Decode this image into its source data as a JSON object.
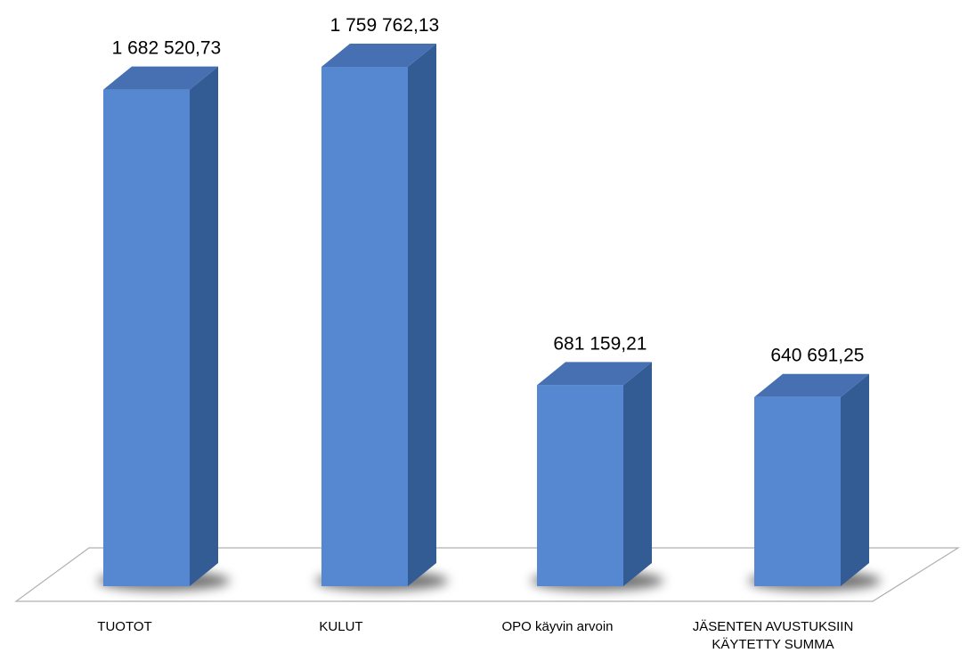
{
  "chart_data": {
    "type": "bar",
    "three_d": true,
    "categories": [
      [
        "TUOTOT"
      ],
      [
        "KULUT"
      ],
      [
        "OPO käyvin arvoin"
      ],
      [
        "JÄSENTEN AVUSTUKSIIN",
        "KÄYTETTY SUMMA"
      ]
    ],
    "values": [
      1682520.73,
      1759762.13,
      681159.21,
      640691.25
    ],
    "value_labels": [
      "1 682 520,73",
      "1 759 762,13",
      "681 159,21",
      "640 691,25"
    ],
    "ylim": [
      0,
      1759762.13
    ],
    "grid": false,
    "legend": "none",
    "colors": {
      "bar_front": "#5588D0",
      "bar_side": "#345C94",
      "bar_top": "#4670B2",
      "floor_stroke": "#B0B0B0",
      "floor_fill": "#FFFFFF",
      "shadow": "#000000"
    }
  }
}
